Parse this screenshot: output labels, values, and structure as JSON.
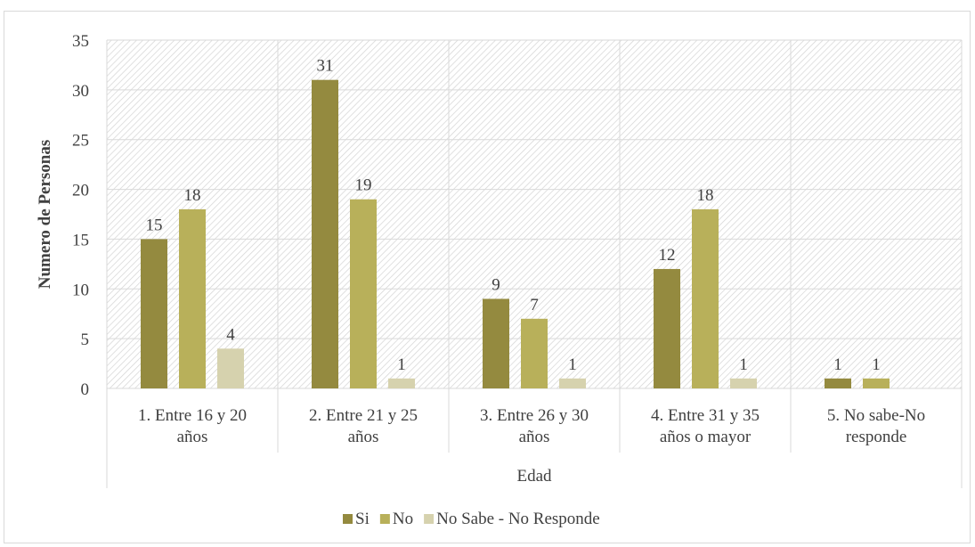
{
  "chart_data": {
    "type": "bar",
    "title": "",
    "xlabel": "Edad",
    "ylabel": "Numero de Personas",
    "ylim": [
      0,
      35
    ],
    "yticks": [
      0,
      5,
      10,
      15,
      20,
      25,
      30,
      35
    ],
    "grid": true,
    "legend": "bottom",
    "categories": [
      [
        "1. Entre 16 y 20",
        "años"
      ],
      [
        "2. Entre 21 y 25",
        "años"
      ],
      [
        "3. Entre 26 y 30",
        "años"
      ],
      [
        "4. Entre 31 y 35",
        "años o mayor"
      ],
      [
        "5. No sabe-No",
        "responde"
      ]
    ],
    "series": [
      {
        "name": "Si",
        "color": "#948A3F",
        "values": [
          15,
          31,
          9,
          12,
          1
        ]
      },
      {
        "name": "No",
        "color": "#B8B05A",
        "values": [
          18,
          19,
          7,
          18,
          1
        ]
      },
      {
        "name": "No Sabe - No Responde",
        "color": "#D6D2AE",
        "values": [
          4,
          1,
          1,
          1,
          null
        ]
      }
    ]
  }
}
